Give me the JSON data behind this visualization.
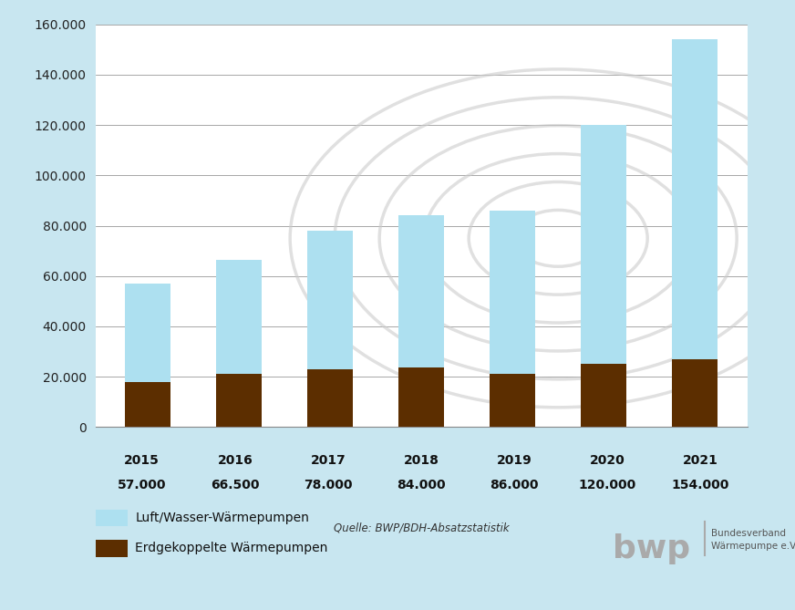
{
  "years": [
    "2015",
    "2016",
    "2017",
    "2018",
    "2019",
    "2020",
    "2021"
  ],
  "totals": [
    57000,
    66500,
    78000,
    84000,
    86000,
    120000,
    154000
  ],
  "erdgekoppelte": [
    18000,
    21000,
    23000,
    23500,
    21000,
    25000,
    27000
  ],
  "subtotals_display": [
    "57.000",
    "66.500",
    "78.000",
    "84.000",
    "86.000",
    "120.000",
    "154.000"
  ],
  "color_luft": "#ADE0F0",
  "color_erd": "#5C2E00",
  "color_background": "#C8E6F0",
  "color_plot_bg": "#FFFFFF",
  "ylim": [
    0,
    160000
  ],
  "yticks": [
    0,
    20000,
    40000,
    60000,
    80000,
    100000,
    120000,
    140000,
    160000
  ],
  "legend_luft": "Luft/Wasser-Wärmepumpen",
  "legend_erd": "Erdgekoppelte Wärmepumpen",
  "source_text": "Quelle: BWP/BDH-Absatzstatistik"
}
